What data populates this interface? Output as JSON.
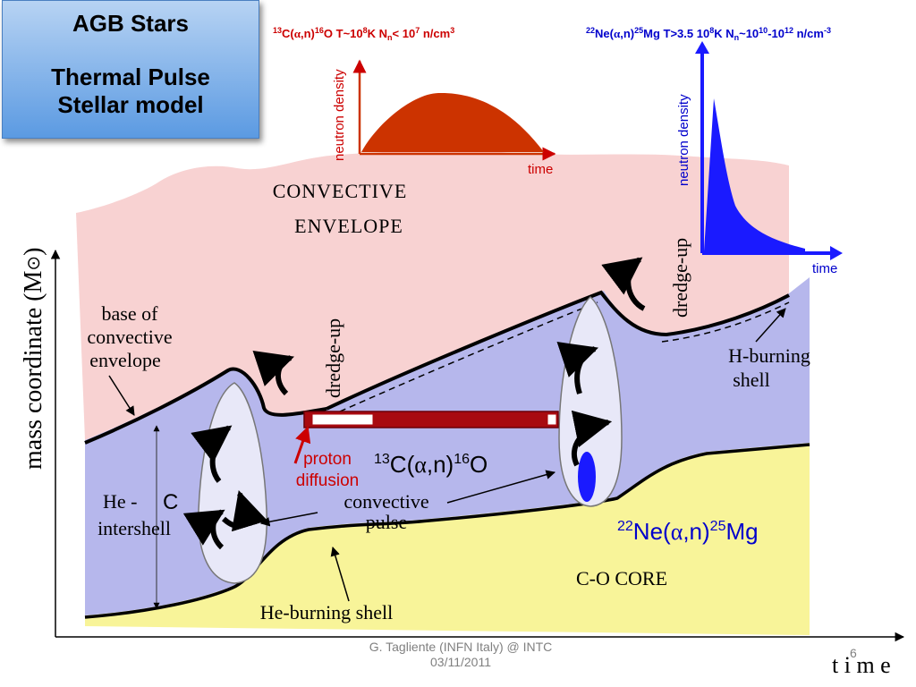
{
  "slide": {
    "title": "AGB Stars",
    "subtitle_line1": "Thermal Pulse",
    "subtitle_line2": "Stellar model",
    "footer_line1": "G. Tagliente (INFN Italy)  @ INTC",
    "footer_line2": "03/11/2011",
    "page_number": "6"
  },
  "axes": {
    "y_label": "mass coordinate (M",
    "y_label_symbol": "⊙",
    "y_label_close": ")",
    "x_label": "t i m e"
  },
  "regions": {
    "envelope_line1": "CONVECTIVE",
    "envelope_line2": "ENVELOPE",
    "core": "C-O CORE",
    "he_intershell_line1": "He -",
    "he_intershell_c": "C",
    "he_intershell_line2": "intershell"
  },
  "labels": {
    "base_line1": "base of",
    "base_line2": "convective",
    "base_line3": "envelope",
    "dredge_up_left": "dredge-up",
    "dredge_up_right": "dredge-up",
    "h_burning_line1": "H-burning",
    "h_burning_line2": "shell",
    "he_burning_shell": "He-burning shell",
    "convective_pulse_line1": "convective",
    "convective_pulse_line2": "pulse",
    "proton_line1": "proton",
    "proton_line2": "diffusion"
  },
  "reactions": {
    "c13_main": {
      "sup1": "13",
      "a": "C(",
      "alpha": "α",
      "b": ",n)",
      "sup2": "16",
      "c": "O"
    },
    "ne22_main": {
      "sup1": "22",
      "a": "Ne(",
      "alpha": "α",
      "b": ",n)",
      "sup2": "25",
      "c": "Mg"
    }
  },
  "inset_left": {
    "header": {
      "sup1": "13",
      "a": "C(",
      "alpha": "α",
      "b": ",n)",
      "sup2": "16",
      "c": "O  T~10",
      "sup3": "8",
      "d": "K  N",
      "sub": "n",
      "e": "< 10",
      "sup4": "7",
      "f": " n/cm",
      "sup5": "3"
    },
    "y_label": "neutron density",
    "x_label": "time",
    "color": "#cc3300"
  },
  "inset_right": {
    "header": {
      "sup1": "22",
      "a": "Ne(",
      "alpha": "α",
      "b": ",n)",
      "sup2": "25",
      "c": "Mg  T>3.5 10",
      "sup3": "8",
      "d": "K  N",
      "sub": "n",
      "e": "~10",
      "sup4": "10",
      "f": "-10",
      "sup5": "12",
      "g": " n/cm",
      "sup6": "-3"
    },
    "y_label": "neutron density",
    "x_label": "time",
    "color": "#1a1aff"
  },
  "colors": {
    "envelope": "#f8d2d2",
    "intershell": "#b6b7ec",
    "core": "#f8f499",
    "pulse": "#e8e8f8",
    "red_label": "#cc0000",
    "blue_label": "#0000cc",
    "pocket": "#a80a10"
  }
}
